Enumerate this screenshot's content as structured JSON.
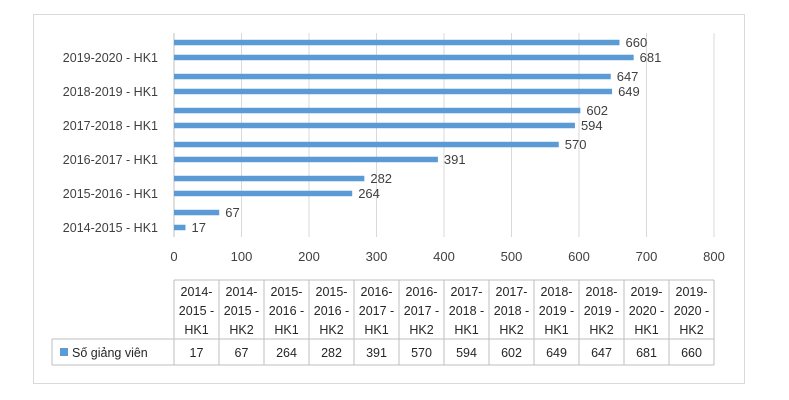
{
  "chart_data": {
    "type": "bar",
    "orientation": "horizontal",
    "categories": [
      "2014-2015 - HK1",
      "2014-2015 - HK2",
      "2015-2016 - HK1",
      "2015-2016 - HK2",
      "2016-2017 - HK1",
      "2016-2017 - HK2",
      "2017-2018 - HK1",
      "2017-2018 - HK2",
      "2018-2019 - HK1",
      "2018-2019 - HK2",
      "2019-2020 - HK1",
      "2019-2020 - HK2"
    ],
    "axis_category_labels": [
      "2014-2015 - HK1",
      "2015-2016 - HK1",
      "2016-2017 - HK1",
      "2017-2018 - HK1",
      "2018-2019 - HK1",
      "2019-2020 - HK1"
    ],
    "table_category_lines": [
      [
        "2014-",
        "2015 -",
        "HK1"
      ],
      [
        "2014-",
        "2015 -",
        "HK2"
      ],
      [
        "2015-",
        "2016 -",
        "HK1"
      ],
      [
        "2015-",
        "2016 -",
        "HK2"
      ],
      [
        "2016-",
        "2017 -",
        "HK1"
      ],
      [
        "2016-",
        "2017 -",
        "HK2"
      ],
      [
        "2017-",
        "2018 -",
        "HK1"
      ],
      [
        "2017-",
        "2018 -",
        "HK2"
      ],
      [
        "2018-",
        "2019 -",
        "HK1"
      ],
      [
        "2018-",
        "2019 -",
        "HK2"
      ],
      [
        "2019-",
        "2020 -",
        "HK1"
      ],
      [
        "2019-",
        "2020 -",
        "HK2"
      ]
    ],
    "series": [
      {
        "name": "Số giảng viên",
        "values": [
          17,
          67,
          264,
          282,
          391,
          570,
          594,
          602,
          649,
          647,
          681,
          660
        ]
      }
    ],
    "xlim": [
      0,
      800
    ],
    "x_ticks": [
      "0",
      "100",
      "200",
      "300",
      "400",
      "500",
      "600",
      "700",
      "800"
    ],
    "grid": "vertical",
    "legend": "data-table",
    "bar_color": "#5b9bd5"
  }
}
